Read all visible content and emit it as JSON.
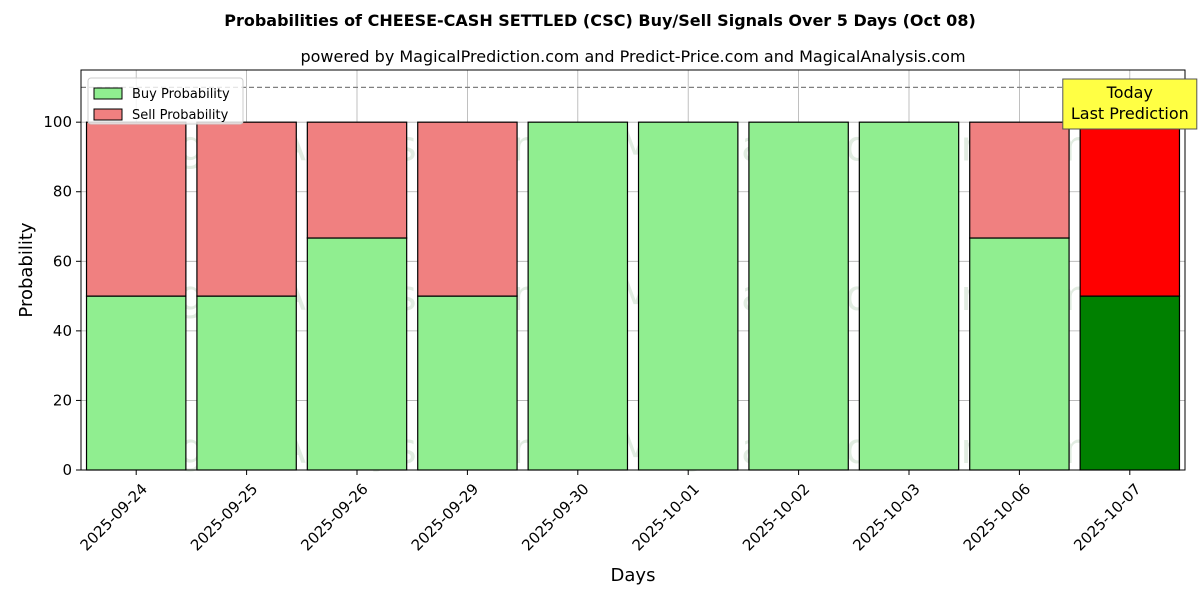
{
  "chart_data": {
    "type": "bar",
    "stacked": true,
    "title": "Probabilities of CHEESE-CASH SETTLED (CSC) Buy/Sell Signals Over 5 Days (Oct 08)",
    "subtitle": "powered by MagicalPrediction.com and Predict-Price.com and MagicalAnalysis.com",
    "xlabel": "Days",
    "ylabel": "Probability",
    "ylim": [
      0,
      115
    ],
    "yticks": [
      0,
      20,
      40,
      60,
      80,
      100
    ],
    "grid": true,
    "legend_position": "upper-left",
    "reference_line": 110,
    "categories": [
      "2025-09-24",
      "2025-09-25",
      "2025-09-26",
      "2025-09-29",
      "2025-09-30",
      "2025-10-01",
      "2025-10-02",
      "2025-10-03",
      "2025-10-06",
      "2025-10-07"
    ],
    "series": [
      {
        "name": "Buy Probability",
        "color": "#90ee90",
        "highlight_color": "#008000",
        "values": [
          50,
          50,
          66.7,
          50,
          100,
          100,
          100,
          100,
          66.7,
          50
        ]
      },
      {
        "name": "Sell Probability",
        "color": "#f08080",
        "highlight_color": "#ff0000",
        "values": [
          50,
          50,
          33.3,
          50,
          0,
          0,
          0,
          0,
          33.3,
          50
        ]
      }
    ],
    "highlight_index": 9,
    "annotation": {
      "lines": [
        "Today",
        "Last Prediction"
      ],
      "color": "#ffff44"
    },
    "watermarks": [
      "MagicalAnalysis.com",
      "MagicalPrediction.com"
    ]
  }
}
